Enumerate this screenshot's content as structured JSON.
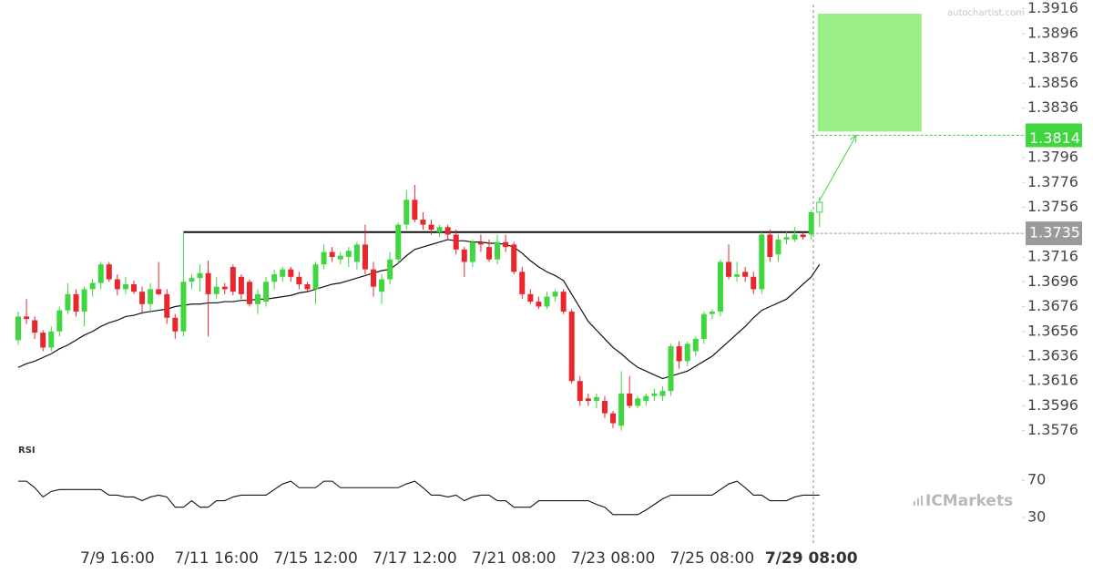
{
  "chart_data": [
    {
      "type": "candlestick",
      "watermark": "autochartist.com",
      "logo": "ICMarkets",
      "categories": [
        null,
        null,
        null,
        null,
        null,
        null,
        null,
        null,
        null,
        null,
        null,
        null,
        "7/9 16:00",
        null,
        null,
        null,
        null,
        null,
        null,
        null,
        null,
        null,
        null,
        null,
        "7/11 16:00",
        null,
        null,
        null,
        null,
        null,
        null,
        null,
        null,
        null,
        null,
        null,
        "7/15 12:00",
        null,
        null,
        null,
        null,
        null,
        null,
        null,
        null,
        null,
        null,
        null,
        "7/17 12:00",
        null,
        null,
        null,
        null,
        null,
        null,
        null,
        null,
        null,
        null,
        null,
        "7/21 08:00",
        null,
        null,
        null,
        null,
        null,
        null,
        null,
        null,
        null,
        null,
        null,
        "7/23 08:00",
        null,
        null,
        null,
        null,
        null,
        null,
        null,
        null,
        null,
        null,
        null,
        "7/25 08:00",
        null,
        null,
        null,
        null,
        null,
        null,
        null,
        null,
        null,
        null,
        null,
        "7/29 08:00",
        null
      ],
      "open": [
        1.3649,
        1.3668,
        1.3665,
        1.3655,
        1.3643,
        1.3656,
        1.3673,
        1.3686,
        1.3672,
        1.369,
        1.3695,
        1.371,
        1.3698,
        1.369,
        1.3694,
        1.3688,
        1.3678,
        1.369,
        1.3686,
        1.3667,
        1.3656,
        1.3696,
        1.3699,
        1.3703,
        1.3686,
        1.3692,
        1.3708,
        1.37,
        1.3696,
        1.3678,
        1.368,
        1.3696,
        1.37,
        1.3706,
        1.37,
        1.3694,
        1.369,
        1.371,
        1.372,
        1.3714,
        1.3716,
        1.3712,
        1.3726,
        1.3706,
        1.3688,
        1.3698,
        1.3714,
        1.3742,
        1.3762,
        1.3746,
        1.3742,
        1.3736,
        1.374,
        1.3734,
        1.3722,
        1.3712,
        1.3728,
        1.3724,
        1.3714,
        1.3728,
        1.3726,
        1.3704,
        1.3686,
        1.368,
        1.3676,
        1.3684,
        1.3688,
        1.3672,
        1.3616,
        1.3602,
        1.36,
        1.36,
        1.359,
        1.358,
        1.3606,
        1.3596,
        1.36,
        1.3604,
        1.3604,
        1.3608,
        1.3644,
        1.3632,
        1.364,
        1.365,
        1.367,
        1.3672,
        1.3712,
        1.37,
        1.3704,
        1.37,
        1.369,
        1.3734,
        1.3718,
        1.373,
        1.373,
        1.3734,
        1.3734,
        1.3752
      ],
      "high": [
        1.3672,
        1.3682,
        1.3668,
        1.3657,
        1.366,
        1.3676,
        1.3695,
        1.369,
        1.3692,
        1.3698,
        1.3712,
        1.3712,
        1.3702,
        1.37,
        1.3697,
        1.3692,
        1.3695,
        1.3712,
        1.369,
        1.367,
        1.3736,
        1.3702,
        1.371,
        1.3713,
        1.37,
        1.3695,
        1.371,
        1.3702,
        1.3698,
        1.369,
        1.37,
        1.3706,
        1.3708,
        1.3708,
        1.3704,
        1.3696,
        1.3712,
        1.3726,
        1.3724,
        1.372,
        1.3724,
        1.3728,
        1.3742,
        1.3712,
        1.3702,
        1.372,
        1.3744,
        1.377,
        1.3774,
        1.3752,
        1.3746,
        1.3742,
        1.3742,
        1.3738,
        1.3724,
        1.373,
        1.3734,
        1.373,
        1.3734,
        1.3734,
        1.3728,
        1.3708,
        1.369,
        1.3684,
        1.3688,
        1.369,
        1.369,
        1.3674,
        1.362,
        1.3606,
        1.3606,
        1.3604,
        1.3592,
        1.3624,
        1.362,
        1.3604,
        1.3606,
        1.361,
        1.3612,
        1.3646,
        1.3648,
        1.3648,
        1.3652,
        1.3672,
        1.3674,
        1.3714,
        1.3726,
        1.3712,
        1.3708,
        1.3704,
        1.3736,
        1.3738,
        1.3734,
        1.3736,
        1.374,
        1.3736,
        1.3754,
        1.3764
      ],
      "low": [
        1.3645,
        1.3662,
        1.365,
        1.364,
        1.364,
        1.3652,
        1.367,
        1.3668,
        1.366,
        1.3684,
        1.369,
        1.3696,
        1.3685,
        1.3686,
        1.3686,
        1.367,
        1.3672,
        1.3685,
        1.3662,
        1.365,
        1.3652,
        1.369,
        1.3688,
        1.3652,
        1.3682,
        1.3686,
        1.3685,
        1.3682,
        1.3676,
        1.367,
        1.3676,
        1.369,
        1.3696,
        1.3696,
        1.369,
        1.3688,
        1.3678,
        1.3706,
        1.3712,
        1.371,
        1.3708,
        1.3706,
        1.3702,
        1.3684,
        1.3678,
        1.3694,
        1.371,
        1.3738,
        1.3744,
        1.3738,
        1.3734,
        1.3732,
        1.373,
        1.3718,
        1.37,
        1.3708,
        1.372,
        1.3712,
        1.371,
        1.372,
        1.3702,
        1.3682,
        1.3678,
        1.3674,
        1.3674,
        1.368,
        1.367,
        1.3614,
        1.3596,
        1.3596,
        1.3594,
        1.3586,
        1.3578,
        1.3576,
        1.3594,
        1.3594,
        1.3596,
        1.36,
        1.36,
        1.3604,
        1.3626,
        1.3628,
        1.3636,
        1.3646,
        1.3666,
        1.3668,
        1.3698,
        1.3696,
        1.3696,
        1.3686,
        1.3686,
        1.3712,
        1.3712,
        1.3726,
        1.3728,
        1.373,
        1.373,
        1.374
      ],
      "close": [
        1.3668,
        1.3666,
        1.3655,
        1.3643,
        1.3656,
        1.3673,
        1.3686,
        1.3672,
        1.369,
        1.3695,
        1.371,
        1.3698,
        1.369,
        1.3694,
        1.3688,
        1.3678,
        1.369,
        1.3686,
        1.3667,
        1.3656,
        1.3696,
        1.3699,
        1.3703,
        1.3686,
        1.3692,
        1.369,
        1.3688,
        1.3686,
        1.3678,
        1.3686,
        1.3696,
        1.3702,
        1.3706,
        1.37,
        1.3694,
        1.369,
        1.371,
        1.372,
        1.3716,
        1.3717,
        1.3721,
        1.3726,
        1.3706,
        1.3692,
        1.3698,
        1.3714,
        1.3742,
        1.3762,
        1.3746,
        1.3742,
        1.3738,
        1.374,
        1.3734,
        1.3722,
        1.3712,
        1.3728,
        1.3726,
        1.3714,
        1.3728,
        1.3724,
        1.3704,
        1.3686,
        1.368,
        1.3676,
        1.3684,
        1.3688,
        1.3672,
        1.3616,
        1.36,
        1.36,
        1.3603,
        1.359,
        1.3582,
        1.3606,
        1.3596,
        1.3602,
        1.3604,
        1.3606,
        1.3608,
        1.3644,
        1.3632,
        1.3646,
        1.365,
        1.367,
        1.3672,
        1.3712,
        1.37,
        1.3702,
        1.37,
        1.369,
        1.3734,
        1.3716,
        1.373,
        1.3732,
        1.3734,
        1.3732,
        1.3752,
        1.376
      ],
      "up_color": "#3fd63f",
      "down_color": "#e8262b",
      "last_candle_hollow": true,
      "ma": {
        "color": "#111111",
        "values": [
          1.3627,
          1.363,
          1.3632,
          1.3635,
          1.3638,
          1.3642,
          1.3645,
          1.3649,
          1.3653,
          1.3656,
          1.366,
          1.3663,
          1.3665,
          1.3668,
          1.3669,
          1.3671,
          1.3672,
          1.3673,
          1.3674,
          1.3676,
          1.3677,
          1.3678,
          1.3678,
          1.3679,
          1.3679,
          1.368,
          1.368,
          1.3681,
          1.3681,
          1.3682,
          1.3682,
          1.3683,
          1.3684,
          1.3685,
          1.3687,
          1.3688,
          1.369,
          1.3692,
          1.3694,
          1.3695,
          1.3697,
          1.3699,
          1.3701,
          1.3703,
          1.3705,
          1.3706,
          1.3711,
          1.3717,
          1.3722,
          1.3724,
          1.3726,
          1.3728,
          1.373,
          1.3729,
          1.3729,
          1.3728,
          1.3728,
          1.3727,
          1.3727,
          1.3726,
          1.3724,
          1.3719,
          1.3713,
          1.3708,
          1.3704,
          1.3701,
          1.3697,
          1.3686,
          1.3675,
          1.3664,
          1.3657,
          1.365,
          1.3643,
          1.3638,
          1.3632,
          1.3627,
          1.3624,
          1.3621,
          1.3618,
          1.362,
          1.3622,
          1.3624,
          1.3628,
          1.3632,
          1.3636,
          1.3642,
          1.3648,
          1.3654,
          1.366,
          1.3667,
          1.3673,
          1.3676,
          1.3679,
          1.3682,
          1.3688,
          1.3694,
          1.37,
          1.371
        ]
      },
      "resistance": 1.3736,
      "current_price": 1.3735,
      "target": 1.3814,
      "target_zone": [
        1.3817,
        1.3912
      ],
      "target_color": "#99ee88",
      "ylim": [
        1.3567,
        1.3923
      ],
      "yticks": [
        1.3916,
        1.3896,
        1.3876,
        1.3856,
        1.3836,
        1.3796,
        1.3776,
        1.3756,
        1.3716,
        1.3696,
        1.3676,
        1.3656,
        1.3636,
        1.3616,
        1.3596,
        1.3576
      ]
    },
    {
      "type": "line",
      "title": "RSI",
      "color": "#111111",
      "values": [
        69,
        69,
        62,
        52,
        58,
        60,
        60,
        60,
        60,
        60,
        60,
        54,
        54,
        52,
        52,
        48,
        52,
        54,
        52,
        41,
        41,
        48,
        41,
        41,
        48,
        48,
        52,
        54,
        54,
        54,
        54,
        60,
        66,
        69,
        62,
        62,
        62,
        69,
        69,
        62,
        62,
        62,
        62,
        62,
        62,
        62,
        62,
        66,
        69,
        62,
        54,
        54,
        52,
        54,
        48,
        52,
        54,
        54,
        48,
        48,
        41,
        41,
        41,
        48,
        48,
        48,
        48,
        48,
        48,
        48,
        44,
        41,
        33,
        33,
        33,
        33,
        38,
        44,
        50,
        54,
        54,
        54,
        54,
        54,
        54,
        60,
        66,
        69,
        62,
        54,
        54,
        48,
        48,
        48,
        52,
        54,
        54,
        54
      ],
      "ylim": [
        25,
        75
      ],
      "yticks": [
        70,
        30
      ]
    }
  ]
}
